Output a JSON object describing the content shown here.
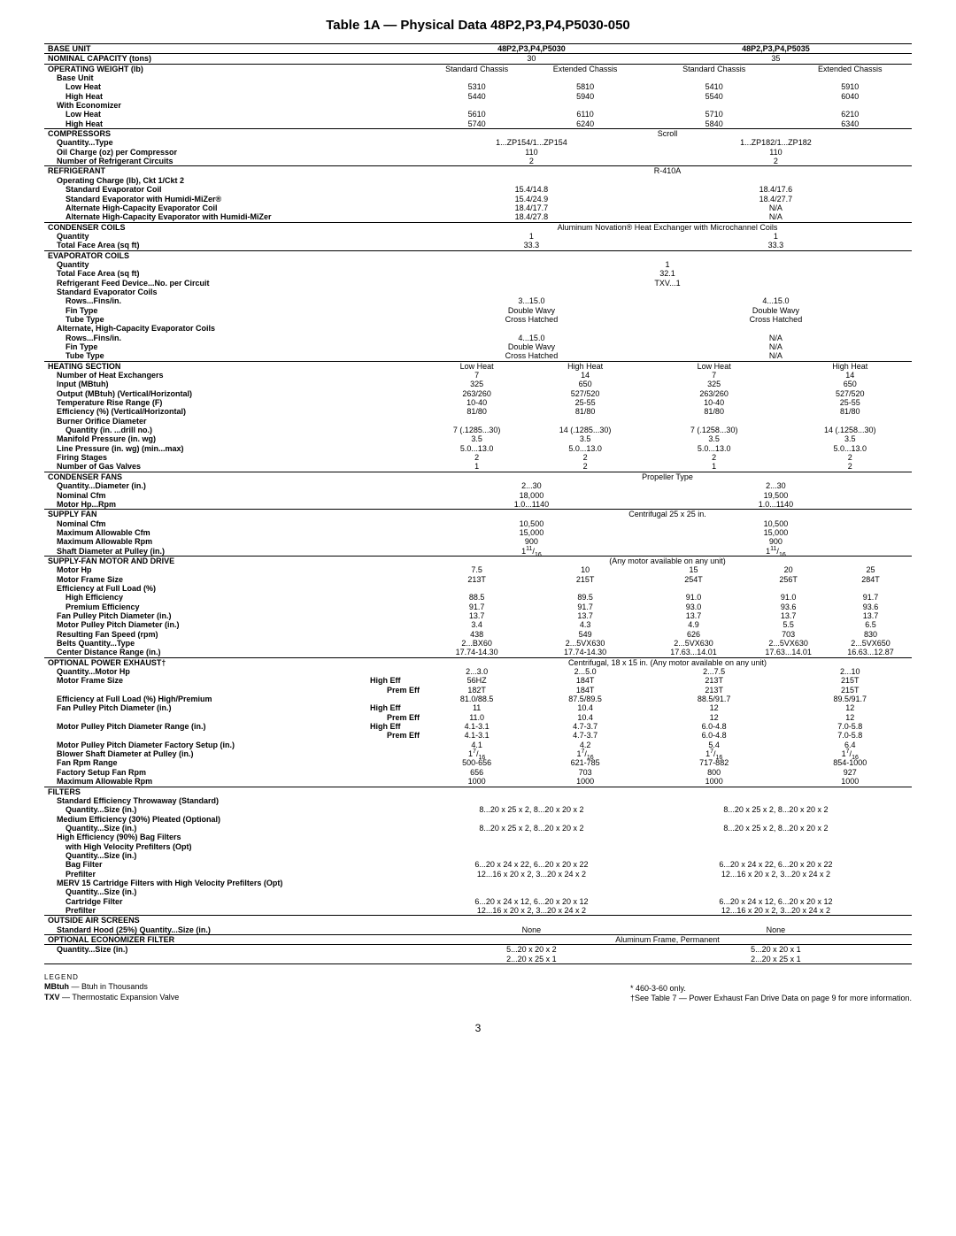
{
  "title": "Table 1A — Physical Data 48P2,P3,P4,P5030-050",
  "page_num": "3",
  "col_header": {
    "model_a": "48P2,P3,P4,P5030",
    "model_b": "48P2,P3,P4,P5035"
  },
  "nominal_capacity": {
    "label": "NOMINAL CAPACITY (tons)",
    "a": "30",
    "b": "35"
  },
  "operating_weight": {
    "label": "OPERATING WEIGHT (lb)",
    "sc": "Standard Chassis",
    "ec": "Extended Chassis",
    "base_unit": "Base Unit",
    "low_heat": "Low Heat",
    "high_heat": "High Heat",
    "with_econ": "With Economizer",
    "bu_lh": [
      "5310",
      "5810",
      "5410",
      "5910"
    ],
    "bu_hh": [
      "5440",
      "5940",
      "5540",
      "6040"
    ],
    "we_lh": [
      "5610",
      "6110",
      "5710",
      "6210"
    ],
    "we_hh": [
      "5740",
      "6240",
      "5840",
      "6340"
    ]
  },
  "compressors": {
    "label": "COMPRESSORS",
    "scroll": "Scroll",
    "qty_type": "Quantity...Type",
    "qty_type_v": [
      "1...ZP154/1...ZP154",
      "1...ZP182/1...ZP182"
    ],
    "oil": "Oil Charge (oz) per Compressor",
    "oil_v": [
      "110",
      "110"
    ],
    "circuits": "Number of Refrigerant Circuits",
    "circuits_v": [
      "2",
      "2"
    ]
  },
  "refrigerant": {
    "label": "REFRIGERANT",
    "type": "R-410A",
    "op_charge": "Operating Charge (lb), Ckt 1/Ckt 2",
    "std_evap": "Standard Evaporator Coil",
    "std_evap_v": [
      "15.4/14.8",
      "18.4/17.6"
    ],
    "std_evap_hm": "Standard Evaporator with Humidi-MiZer®",
    "std_evap_hm_v": [
      "15.4/24.9",
      "18.4/27.7"
    ],
    "alt_hc": "Alternate High-Capacity Evaporator Coil",
    "alt_hc_v": [
      "18.4/17.7",
      "N/A"
    ],
    "alt_hc_hm": "Alternate High-Capacity Evaporator with Humidi-MiZer",
    "alt_hc_hm_v": [
      "18.4/27.8",
      "N/A"
    ]
  },
  "condenser_coils": {
    "label": "CONDENSER COILS",
    "note": "Aluminum Novation® Heat Exchanger with Microchannel Coils",
    "qty": "Quantity",
    "qty_v": [
      "1",
      "1"
    ],
    "tfa": "Total Face Area (sq ft)",
    "tfa_v": [
      "33.3",
      "33.3"
    ]
  },
  "evap_coils": {
    "label": "EVAPORATOR COILS",
    "qty": "Quantity",
    "qty_v": "1",
    "tfa": "Total Face Area (sq ft)",
    "tfa_v": "32.1",
    "rfd": "Refrigerant Feed Device...No. per Circuit",
    "rfd_v": "TXV...1",
    "std": "Standard Evaporator Coils",
    "rows": "Rows...Fins/in.",
    "rows_v": [
      "3...15.0",
      "4...15.0"
    ],
    "fin": "Fin Type",
    "fin_v": [
      "Double Wavy",
      "Double Wavy"
    ],
    "tube": "Tube Type",
    "tube_v": [
      "Cross Hatched",
      "Cross Hatched"
    ],
    "alt": "Alternate, High-Capacity Evaporator Coils",
    "alt_rows_v": [
      "4...15.0",
      "N/A"
    ],
    "alt_fin_v": [
      "Double Wavy",
      "N/A"
    ],
    "alt_tube_v": [
      "Cross Hatched",
      "N/A"
    ]
  },
  "heating": {
    "label": "HEATING SECTION",
    "lh": "Low Heat",
    "hh": "High Heat",
    "nhe": "Number of Heat Exchangers",
    "nhe_v": [
      "7",
      "14",
      "7",
      "14"
    ],
    "input": "Input (MBtuh)",
    "input_v": [
      "325",
      "650",
      "325",
      "650"
    ],
    "output": "Output (MBtuh) (Vertical/Horizontal)",
    "output_v": [
      "263/260",
      "527/520",
      "263/260",
      "527/520"
    ],
    "trr": "Temperature Rise Range (F)",
    "trr_v": [
      "10-40",
      "25-55",
      "10-40",
      "25-55"
    ],
    "eff": "Efficiency (%) (Vertical/Horizontal)",
    "eff_v": [
      "81/80",
      "81/80",
      "81/80",
      "81/80"
    ],
    "bod": "Burner Orifice Diameter",
    "bod_q": "Quantity (in. ...drill no.)",
    "bod_q_v": [
      "7 (.1285...30)",
      "14 (.1285...30)",
      "7 (.1258...30)",
      "14 (.1258...30)"
    ],
    "mp": "Manifold Pressure (in. wg)",
    "mp_v": [
      "3.5",
      "3.5",
      "3.5",
      "3.5"
    ],
    "lp": "Line Pressure (in. wg) (min...max)",
    "lp_v": [
      "5.0...13.0",
      "5.0...13.0",
      "5.0...13.0",
      "5.0...13.0"
    ],
    "fs": "Firing Stages",
    "fs_v": [
      "2",
      "2",
      "2",
      "2"
    ],
    "ngv": "Number of Gas Valves",
    "ngv_v": [
      "1",
      "2",
      "1",
      "2"
    ]
  },
  "cond_fans": {
    "label": "CONDENSER FANS",
    "type": "Propeller Type",
    "qd": "Quantity...Diameter (in.)",
    "qd_v": [
      "2...30",
      "2...30"
    ],
    "cfm": "Nominal Cfm",
    "cfm_v": [
      "18,000",
      "19,500"
    ],
    "mhr": "Motor Hp...Rpm",
    "mhr_v": [
      "1.0...1140",
      "1.0...1140"
    ]
  },
  "supply_fan": {
    "label": "SUPPLY FAN",
    "type": "Centrifugal 25 x 25 in.",
    "cfm": "Nominal Cfm",
    "cfm_v": [
      "10,500",
      "10,500"
    ],
    "mac": "Maximum Allowable Cfm",
    "mac_v": [
      "15,000",
      "15,000"
    ],
    "mar": "Maximum Allowable Rpm",
    "mar_v": [
      "900",
      "900"
    ],
    "sdp": "Shaft Diameter at Pulley (in.)"
  },
  "sfmd": {
    "label": "SUPPLY-FAN MOTOR AND DRIVE",
    "note": "(Any motor available on any unit)",
    "hp": "Motor Hp",
    "hp_v": [
      "7.5",
      "10",
      "15",
      "20",
      "25"
    ],
    "mfs": "Motor Frame Size",
    "mfs_v": [
      "213T",
      "215T",
      "254T",
      "256T",
      "284T"
    ],
    "efl": "Efficiency at Full Load (%)",
    "he": "High Efficiency",
    "he_v": [
      "88.5",
      "89.5",
      "91.0",
      "91.0",
      "91.7"
    ],
    "pe": "Premium Efficiency",
    "pe_v": [
      "91.7",
      "91.7",
      "93.0",
      "93.6",
      "93.6"
    ],
    "fppd": "Fan Pulley Pitch Diameter (in.)",
    "fppd_v": [
      "13.7",
      "13.7",
      "13.7",
      "13.7",
      "13.7"
    ],
    "mppd": "Motor Pulley Pitch Diameter (in.)",
    "mppd_v": [
      "3.4",
      "4.3",
      "4.9",
      "5.5",
      "6.5"
    ],
    "rfs": "Resulting Fan Speed (rpm)",
    "rfs_v": [
      "438",
      "549",
      "626",
      "703",
      "830"
    ],
    "bqt": "Belts Quantity...Type",
    "bqt_v": [
      "2...BX60",
      "2...5VX630",
      "2...5VX630",
      "2...5VX630",
      "2...5VX650"
    ],
    "cdr": "Center Distance Range (in.)",
    "cdr_v": [
      "17.74-14.30",
      "17.74-14.30",
      "17.63...14.01",
      "17.63...14.01",
      "16.63...12.87"
    ]
  },
  "ope": {
    "label": "OPTIONAL POWER EXHAUST†",
    "note": "Centrifugal, 18 x 15 in. (Any motor available on any unit)",
    "qmh": "Quantity...Motor Hp",
    "qmh_v": [
      "2...3.0",
      "2...5.0",
      "2...7.5",
      "2...10"
    ],
    "mfs": "Motor Frame Size",
    "mfs_he": [
      "56HZ",
      "184T",
      "213T",
      "215T"
    ],
    "mfs_pe": [
      "182T",
      "184T",
      "213T",
      "215T"
    ],
    "efl": "Efficiency at Full Load (%) High/Premium",
    "efl_v": [
      "81.0/88.5",
      "87.5/89.5",
      "88.5/91.7",
      "89.5/91.7"
    ],
    "fppd": "Fan Pulley Pitch Diameter (in.)",
    "fppd_he": [
      "11",
      "10.4",
      "12",
      "12"
    ],
    "fppd_pe": [
      "11.0",
      "10.4",
      "12",
      "12"
    ],
    "mppdr": "Motor Pulley Pitch Diameter Range (in.)",
    "mppdr_he": [
      "4.1-3.1",
      "4.7-3.7",
      "6.0-4.8",
      "7.0-5.8"
    ],
    "mppdr_pe": [
      "4.1-3.1",
      "4.7-3.7",
      "6.0-4.8",
      "7.0-5.8"
    ],
    "mppdfs": "Motor Pulley Pitch Diameter Factory Setup (in.)",
    "mppdfs_v": [
      "4.1",
      "4.2",
      "5.4",
      "6.4"
    ],
    "bsdp": "Blower Shaft Diameter at Pulley (in.)",
    "frr": "Fan Rpm Range",
    "frr_v": [
      "500-656",
      "621-785",
      "717-882",
      "854-1000"
    ],
    "fsfr": "Factory Setup Fan Rpm",
    "fsfr_v": [
      "656",
      "703",
      "800",
      "927"
    ],
    "mar": "Maximum Allowable Rpm",
    "mar_v": [
      "1000",
      "1000",
      "1000",
      "1000"
    ],
    "he_lbl": "High Eff",
    "pe_lbl": "Prem Eff"
  },
  "filters": {
    "label": "FILTERS",
    "std": "Standard Efficiency Throwaway (Standard)",
    "qs": "Quantity...Size (in.)",
    "std_v": [
      "8...20 x 25 x 2, 8...20 x 20 x 2",
      "8...20 x 25 x 2, 8...20 x 20 x 2"
    ],
    "med": "Medium Efficiency (30%) Pleated (Optional)",
    "med_v": [
      "8...20 x 25 x 2, 8...20 x 20 x 2",
      "8...20 x 25 x 2, 8...20 x 20 x 2"
    ],
    "hebf": "High Efficiency (90%) Bag Filters",
    "hvp": "with High Velocity Prefilters (Opt)",
    "bf": "Bag Filter",
    "bf_v": [
      "6...20 x 24 x 22, 6...20 x 20 x 22",
      "6...20 x 24 x 22, 6...20 x 20 x 22"
    ],
    "pf": "Prefilter",
    "pf_v": [
      "12...16 x 20 x 2, 3...20 x 24 x 2",
      "12...16 x 20 x 2, 3...20 x 24 x 2"
    ],
    "merv": "MERV 15 Cartridge Filters with High Velocity Prefilters (Opt)",
    "cf": "Cartridge Filter",
    "cf_v": [
      "6...20 x 24 x 12, 6...20 x 20 x 12",
      "6...20 x 24 x 12, 6...20 x 20 x 12"
    ],
    "pf2_v": [
      "12...16 x 20 x 2, 3...20 x 24 x 2",
      "12...16 x 20 x 2, 3...20 x 24 x 2"
    ]
  },
  "oas": {
    "label": "OUTSIDE AIR SCREENS",
    "sh": "Standard Hood (25%) Quantity...Size (in.)",
    "sh_v": [
      "None",
      "None"
    ]
  },
  "oef": {
    "label": "OPTIONAL ECONOMIZER FILTER",
    "type": "Aluminum Frame, Permanent",
    "qs": "Quantity...Size (in.)",
    "r1": [
      "5...20 x 20 x 2",
      "5...20 x 20 x 1"
    ],
    "r2": [
      "2...20 x 25 x 1",
      "2...20 x 25 x 1"
    ]
  },
  "legend": {
    "title": "LEGEND",
    "mbtuh": "MBtuh",
    "mbtuh_def": "— Btuh in Thousands",
    "txv": "TXV",
    "txv_def": "— Thermostatic Expansion Valve",
    "note1": "* 460-3-60 only.",
    "note2": "†See Table 7 — Power Exhaust Fan Drive Data on page 9 for more information."
  }
}
